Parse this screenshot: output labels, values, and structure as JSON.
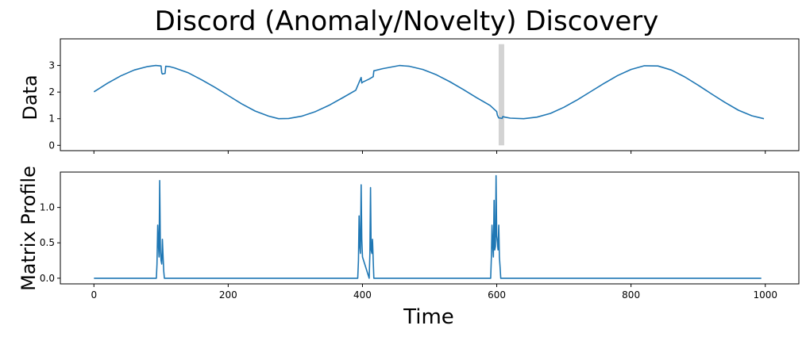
{
  "chart_data": {
    "type": "line",
    "title": "Discord (Anomaly/Novelty) Discovery",
    "xlabel": "Time",
    "xlim": [
      -50,
      1050
    ],
    "xticks": [
      0,
      200,
      400,
      600,
      800,
      1000
    ],
    "xtick_labels": [
      "0",
      "200",
      "400",
      "600",
      "800",
      "1000"
    ],
    "color": "#1f77b4",
    "highlight_color": "#d3d3d3",
    "panels": [
      {
        "name": "data",
        "ylabel": "Data",
        "ylim": [
          -0.2,
          4.0
        ],
        "yticks": [
          0,
          1,
          2,
          3
        ],
        "ytick_labels": [
          "0",
          "1",
          "2",
          "3"
        ],
        "discord_highlight_x": 607,
        "series": {
          "name": "Data",
          "x": [
            0,
            20,
            40,
            60,
            80,
            92,
            100,
            101,
            102,
            106,
            107,
            112,
            120,
            140,
            160,
            180,
            200,
            220,
            240,
            260,
            275,
            290,
            310,
            330,
            350,
            370,
            390,
            398,
            399,
            400,
            410,
            416,
            417,
            430,
            455,
            470,
            490,
            510,
            530,
            550,
            570,
            590,
            600,
            601,
            603,
            606,
            608,
            609,
            612,
            620,
            640,
            660,
            680,
            700,
            720,
            740,
            760,
            780,
            800,
            820,
            840,
            860,
            880,
            900,
            920,
            940,
            960,
            980,
            998
          ],
          "y": [
            2.01,
            2.33,
            2.61,
            2.83,
            2.96,
            3.0,
            2.98,
            2.72,
            2.68,
            2.7,
            2.97,
            2.96,
            2.91,
            2.73,
            2.47,
            2.18,
            1.87,
            1.56,
            1.29,
            1.1,
            1.0,
            1.01,
            1.1,
            1.27,
            1.5,
            1.78,
            2.07,
            2.55,
            2.34,
            2.37,
            2.49,
            2.58,
            2.8,
            2.88,
            3.0,
            2.97,
            2.85,
            2.65,
            2.39,
            2.1,
            1.79,
            1.5,
            1.27,
            1.13,
            1.03,
            1.02,
            1.01,
            1.08,
            1.06,
            1.02,
            1.0,
            1.06,
            1.2,
            1.43,
            1.71,
            2.02,
            2.33,
            2.62,
            2.85,
            2.99,
            2.98,
            2.83,
            2.57,
            2.26,
            1.93,
            1.61,
            1.32,
            1.11,
            1.0
          ]
        }
      },
      {
        "name": "matrix-profile",
        "ylabel": "Matrix Profile",
        "ylim": [
          -0.08,
          1.5
        ],
        "yticks": [
          0.0,
          0.5,
          1.0
        ],
        "ytick_labels": [
          "0.0",
          "0.5",
          "1.0"
        ],
        "series": {
          "name": "Matrix Profile",
          "x": [
            0,
            93,
            94,
            95,
            96,
            97,
            98,
            99,
            100,
            101,
            102,
            103,
            104,
            105,
            106,
            107,
            108,
            393,
            394,
            395,
            396,
            397,
            398,
            399,
            400,
            410,
            411,
            412,
            413,
            414,
            415,
            416,
            417,
            418,
            591,
            592,
            593,
            594,
            595,
            596,
            597,
            598,
            599,
            600,
            601,
            602,
            603,
            604,
            605,
            606,
            607,
            608,
            609,
            610,
            611,
            994
          ],
          "y": [
            0,
            0,
            0.2,
            0.75,
            0.5,
            0.3,
            1.38,
            0.4,
            0.25,
            0.2,
            0.55,
            0.3,
            0.1,
            0,
            0,
            0,
            0,
            0,
            0.25,
            0.88,
            0.45,
            0.35,
            1.32,
            0.55,
            0.3,
            0,
            0.35,
            1.28,
            0.4,
            0.35,
            0.55,
            0.25,
            0,
            0,
            0,
            0.3,
            0.75,
            0.45,
            0.3,
            1.1,
            0.4,
            0.45,
            1.45,
            0.6,
            0.5,
            0.4,
            0.75,
            0.3,
            0.15,
            0,
            0,
            0,
            0,
            0,
            0,
            0
          ]
        }
      }
    ]
  }
}
